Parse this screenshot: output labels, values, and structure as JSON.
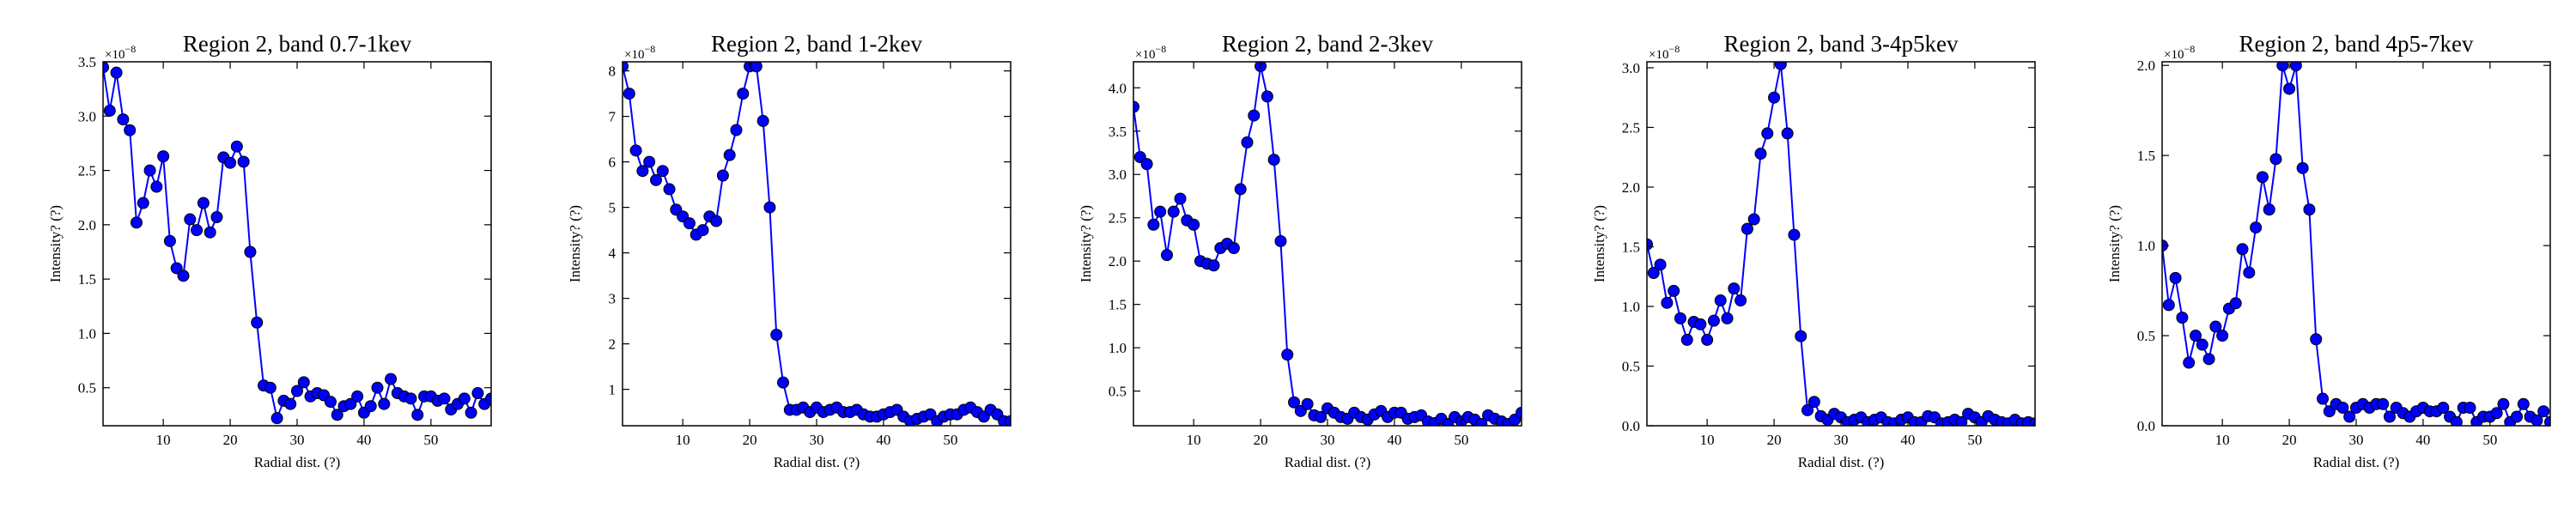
{
  "panels": [
    {
      "title": "Region 2, band 0.7-1kev",
      "xlabel": "Radial dist. (?)",
      "ylabel": "Intensity? (?)",
      "offset_text": "×10",
      "offset_exp": "−8",
      "xlim": [
        1,
        59
      ],
      "ylim": [
        0.15,
        3.5
      ],
      "xticks": [
        {
          "v": 10,
          "t": "10"
        },
        {
          "v": 20,
          "t": "20"
        },
        {
          "v": 30,
          "t": "30"
        },
        {
          "v": 40,
          "t": "40"
        },
        {
          "v": 50,
          "t": "50"
        }
      ],
      "yticks": [
        {
          "v": 0.5,
          "t": "0.5"
        },
        {
          "v": 1.0,
          "t": "1.0"
        },
        {
          "v": 1.5,
          "t": "1.5"
        },
        {
          "v": 2.0,
          "t": "2.0"
        },
        {
          "v": 2.5,
          "t": "2.5"
        },
        {
          "v": 3.0,
          "t": "3.0"
        },
        {
          "v": 3.5,
          "t": "3.5"
        }
      ]
    },
    {
      "title": "Region 2, band 1-2kev",
      "xlabel": "Radial dist. (?)",
      "ylabel": "Intensity? (?)",
      "offset_text": "×10",
      "offset_exp": "−8",
      "xlim": [
        1,
        59
      ],
      "ylim": [
        0.2,
        8.2
      ],
      "xticks": [
        {
          "v": 10,
          "t": "10"
        },
        {
          "v": 20,
          "t": "20"
        },
        {
          "v": 30,
          "t": "30"
        },
        {
          "v": 40,
          "t": "40"
        },
        {
          "v": 50,
          "t": "50"
        }
      ],
      "yticks": [
        {
          "v": 1,
          "t": "1"
        },
        {
          "v": 2,
          "t": "2"
        },
        {
          "v": 3,
          "t": "3"
        },
        {
          "v": 4,
          "t": "4"
        },
        {
          "v": 5,
          "t": "5"
        },
        {
          "v": 6,
          "t": "6"
        },
        {
          "v": 7,
          "t": "7"
        },
        {
          "v": 8,
          "t": "8"
        }
      ]
    },
    {
      "title": "Region 2, band 2-3kev",
      "xlabel": "Radial dist. (?)",
      "ylabel": "Intensity? (?)",
      "offset_text": "×10",
      "offset_exp": "−8",
      "xlim": [
        1,
        59
      ],
      "ylim": [
        0.1,
        4.3
      ],
      "xticks": [
        {
          "v": 10,
          "t": "10"
        },
        {
          "v": 20,
          "t": "20"
        },
        {
          "v": 30,
          "t": "30"
        },
        {
          "v": 40,
          "t": "40"
        },
        {
          "v": 50,
          "t": "50"
        }
      ],
      "yticks": [
        {
          "v": 0.5,
          "t": "0.5"
        },
        {
          "v": 1.0,
          "t": "1.0"
        },
        {
          "v": 1.5,
          "t": "1.5"
        },
        {
          "v": 2.0,
          "t": "2.0"
        },
        {
          "v": 2.5,
          "t": "2.5"
        },
        {
          "v": 3.0,
          "t": "3.0"
        },
        {
          "v": 3.5,
          "t": "3.5"
        },
        {
          "v": 4.0,
          "t": "4.0"
        }
      ]
    },
    {
      "title": "Region 2, band 3-4p5kev",
      "xlabel": "Radial dist. (?)",
      "ylabel": "Intensity? (?)",
      "offset_text": "×10",
      "offset_exp": "−8",
      "xlim": [
        1,
        59
      ],
      "ylim": [
        0.0,
        3.05
      ],
      "xticks": [
        {
          "v": 10,
          "t": "10"
        },
        {
          "v": 20,
          "t": "20"
        },
        {
          "v": 30,
          "t": "30"
        },
        {
          "v": 40,
          "t": "40"
        },
        {
          "v": 50,
          "t": "50"
        }
      ],
      "yticks": [
        {
          "v": 0.0,
          "t": "0.0"
        },
        {
          "v": 0.5,
          "t": "0.5"
        },
        {
          "v": 1.0,
          "t": "1.0"
        },
        {
          "v": 1.5,
          "t": "1.5"
        },
        {
          "v": 2.0,
          "t": "2.0"
        },
        {
          "v": 2.5,
          "t": "2.5"
        },
        {
          "v": 3.0,
          "t": "3.0"
        }
      ]
    },
    {
      "title": "Region 2, band 4p5-7kev",
      "xlabel": "Radial dist. (?)",
      "ylabel": "Intensity? (?)",
      "offset_text": "×10",
      "offset_exp": "−8",
      "xlim": [
        1,
        59
      ],
      "ylim": [
        0.0,
        2.02
      ],
      "xticks": [
        {
          "v": 10,
          "t": "10"
        },
        {
          "v": 20,
          "t": "20"
        },
        {
          "v": 30,
          "t": "30"
        },
        {
          "v": 40,
          "t": "40"
        },
        {
          "v": 50,
          "t": "50"
        }
      ],
      "yticks": [
        {
          "v": 0.0,
          "t": "0.0"
        },
        {
          "v": 0.5,
          "t": "0.5"
        },
        {
          "v": 1.0,
          "t": "1.0"
        },
        {
          "v": 1.5,
          "t": "1.5"
        },
        {
          "v": 2.0,
          "t": "2.0"
        }
      ]
    }
  ],
  "colors": {
    "marker": "#0000ff",
    "line": "#0000ff",
    "marker_edge": "#000000"
  },
  "chart_data": [
    {
      "type": "line",
      "title": "Region 2, band 0.7-1kev",
      "xlabel": "Radial dist. (?)",
      "ylabel": "Intensity? (?)",
      "y_multiplier": "1e-8",
      "xlim": [
        1,
        59
      ],
      "ylim": [
        0.15,
        3.5
      ],
      "grid": false,
      "markers": "circle",
      "x": [
        1,
        2,
        3,
        4,
        5,
        6,
        7,
        8,
        9,
        10,
        11,
        12,
        13,
        14,
        15,
        16,
        17,
        18,
        19,
        20,
        21,
        22,
        23,
        24,
        25,
        26,
        27,
        28,
        29,
        30,
        31,
        32,
        33,
        34,
        35,
        36,
        37,
        38,
        39,
        40,
        41,
        42,
        43,
        44,
        45,
        46,
        47,
        48,
        49,
        50,
        51,
        52,
        53,
        54,
        55,
        56,
        57,
        58,
        59
      ],
      "y": [
        3.45,
        3.05,
        3.4,
        2.97,
        2.87,
        2.02,
        2.2,
        2.5,
        2.35,
        2.63,
        1.85,
        1.6,
        1.53,
        2.05,
        1.95,
        2.2,
        1.93,
        2.07,
        2.62,
        2.57,
        2.72,
        2.58,
        1.75,
        1.1,
        0.52,
        0.5,
        0.22,
        0.38,
        0.35,
        0.47,
        0.55,
        0.42,
        0.45,
        0.43,
        0.37,
        0.25,
        0.33,
        0.35,
        0.42,
        0.27,
        0.33,
        0.5,
        0.35,
        0.58,
        0.45,
        0.42,
        0.4,
        0.25,
        0.42,
        0.42,
        0.38,
        0.4,
        0.3,
        0.35,
        0.4,
        0.27,
        0.45,
        0.35,
        0.4
      ]
    },
    {
      "type": "line",
      "title": "Region 2, band 1-2kev",
      "xlabel": "Radial dist. (?)",
      "ylabel": "Intensity? (?)",
      "y_multiplier": "1e-8",
      "xlim": [
        1,
        59
      ],
      "ylim": [
        0.2,
        8.2
      ],
      "grid": false,
      "markers": "circle",
      "x": [
        1,
        2,
        3,
        4,
        5,
        6,
        7,
        8,
        9,
        10,
        11,
        12,
        13,
        14,
        15,
        16,
        17,
        18,
        19,
        20,
        21,
        22,
        23,
        24,
        25,
        26,
        27,
        28,
        29,
        30,
        31,
        32,
        33,
        34,
        35,
        36,
        37,
        38,
        39,
        40,
        41,
        42,
        43,
        44,
        45,
        46,
        47,
        48,
        49,
        50,
        51,
        52,
        53,
        54,
        55,
        56,
        57,
        58,
        59
      ],
      "y": [
        8.1,
        7.5,
        6.25,
        5.8,
        6.0,
        5.6,
        5.8,
        5.4,
        4.95,
        4.8,
        4.65,
        4.4,
        4.5,
        4.8,
        4.7,
        5.7,
        6.15,
        6.7,
        7.5,
        8.1,
        8.1,
        6.9,
        5.0,
        2.2,
        1.15,
        0.55,
        0.55,
        0.6,
        0.5,
        0.6,
        0.5,
        0.55,
        0.6,
        0.5,
        0.5,
        0.55,
        0.45,
        0.4,
        0.4,
        0.45,
        0.5,
        0.55,
        0.4,
        0.3,
        0.35,
        0.4,
        0.45,
        0.3,
        0.4,
        0.45,
        0.45,
        0.55,
        0.6,
        0.5,
        0.4,
        0.55,
        0.45,
        0.3,
        0.3
      ]
    },
    {
      "type": "line",
      "title": "Region 2, band 2-3kev",
      "xlabel": "Radial dist. (?)",
      "ylabel": "Intensity? (?)",
      "y_multiplier": "1e-8",
      "xlim": [
        1,
        59
      ],
      "ylim": [
        0.1,
        4.3
      ],
      "grid": false,
      "markers": "circle",
      "x": [
        1,
        2,
        3,
        4,
        5,
        6,
        7,
        8,
        9,
        10,
        11,
        12,
        13,
        14,
        15,
        16,
        17,
        18,
        19,
        20,
        21,
        22,
        23,
        24,
        25,
        26,
        27,
        28,
        29,
        30,
        31,
        32,
        33,
        34,
        35,
        36,
        37,
        38,
        39,
        40,
        41,
        42,
        43,
        44,
        45,
        46,
        47,
        48,
        49,
        50,
        51,
        52,
        53,
        54,
        55,
        56,
        57,
        58,
        59
      ],
      "y": [
        3.78,
        3.2,
        3.12,
        2.42,
        2.57,
        2.07,
        2.57,
        2.72,
        2.47,
        2.42,
        2.0,
        1.97,
        1.95,
        2.15,
        2.2,
        2.15,
        2.83,
        3.37,
        3.68,
        4.25,
        3.9,
        3.17,
        2.23,
        0.92,
        0.37,
        0.27,
        0.35,
        0.22,
        0.2,
        0.3,
        0.25,
        0.2,
        0.18,
        0.25,
        0.2,
        0.17,
        0.23,
        0.27,
        0.2,
        0.25,
        0.25,
        0.18,
        0.2,
        0.22,
        0.15,
        0.13,
        0.18,
        0.12,
        0.2,
        0.15,
        0.2,
        0.17,
        0.12,
        0.22,
        0.18,
        0.15,
        0.12,
        0.17,
        0.25
      ]
    },
    {
      "type": "line",
      "title": "Region 2, band 3-4p5kev",
      "xlabel": "Radial dist. (?)",
      "ylabel": "Intensity? (?)",
      "y_multiplier": "1e-8",
      "xlim": [
        1,
        59
      ],
      "ylim": [
        0.0,
        3.05
      ],
      "grid": false,
      "markers": "circle",
      "x": [
        1,
        2,
        3,
        4,
        5,
        6,
        7,
        8,
        9,
        10,
        11,
        12,
        13,
        14,
        15,
        16,
        17,
        18,
        19,
        20,
        21,
        22,
        23,
        24,
        25,
        26,
        27,
        28,
        29,
        30,
        31,
        32,
        33,
        34,
        35,
        36,
        37,
        38,
        39,
        40,
        41,
        42,
        43,
        44,
        45,
        46,
        47,
        48,
        49,
        50,
        51,
        52,
        53,
        54,
        55,
        56,
        57,
        58,
        59
      ],
      "y": [
        1.52,
        1.28,
        1.35,
        1.03,
        1.13,
        0.9,
        0.72,
        0.87,
        0.85,
        0.72,
        0.88,
        1.05,
        0.9,
        1.15,
        1.05,
        1.65,
        1.73,
        2.28,
        2.45,
        2.75,
        3.03,
        2.45,
        1.6,
        0.75,
        0.13,
        0.2,
        0.08,
        0.05,
        0.1,
        0.07,
        0.03,
        0.05,
        0.07,
        0.03,
        0.05,
        0.07,
        0.03,
        0.02,
        0.05,
        0.07,
        0.03,
        0.03,
        0.08,
        0.07,
        0.02,
        0.03,
        0.05,
        0.03,
        0.1,
        0.07,
        0.03,
        0.08,
        0.05,
        0.03,
        0.02,
        0.05,
        0.02,
        0.03,
        0.02
      ]
    },
    {
      "type": "line",
      "title": "Region 2, band 4p5-7kev",
      "xlabel": "Radial dist. (?)",
      "ylabel": "Intensity? (?)",
      "y_multiplier": "1e-8",
      "xlim": [
        1,
        59
      ],
      "ylim": [
        0.0,
        2.02
      ],
      "grid": false,
      "markers": "circle",
      "x": [
        1,
        2,
        3,
        4,
        5,
        6,
        7,
        8,
        9,
        10,
        11,
        12,
        13,
        14,
        15,
        16,
        17,
        18,
        19,
        20,
        21,
        22,
        23,
        24,
        25,
        26,
        27,
        28,
        29,
        30,
        31,
        32,
        33,
        34,
        35,
        36,
        37,
        38,
        39,
        40,
        41,
        42,
        43,
        44,
        45,
        46,
        47,
        48,
        49,
        50,
        51,
        52,
        53,
        54,
        55,
        56,
        57,
        58,
        59
      ],
      "y": [
        1.0,
        0.67,
        0.82,
        0.6,
        0.35,
        0.5,
        0.45,
        0.37,
        0.55,
        0.5,
        0.65,
        0.68,
        0.98,
        0.85,
        1.1,
        1.38,
        1.2,
        1.48,
        2.0,
        1.87,
        2.0,
        1.43,
        1.2,
        0.48,
        0.15,
        0.08,
        0.12,
        0.1,
        0.05,
        0.1,
        0.12,
        0.1,
        0.12,
        0.12,
        0.05,
        0.1,
        0.07,
        0.05,
        0.08,
        0.1,
        0.08,
        0.08,
        0.1,
        0.05,
        0.02,
        0.1,
        0.1,
        0.02,
        0.05,
        0.05,
        0.07,
        0.12,
        0.02,
        0.05,
        0.12,
        0.05,
        0.03,
        0.08,
        0.02
      ]
    }
  ]
}
